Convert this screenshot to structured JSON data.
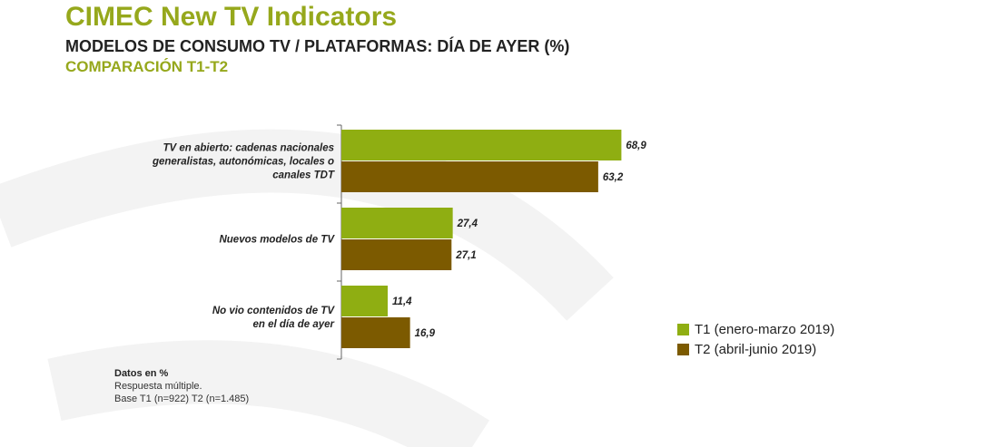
{
  "header": {
    "title": "CIMEC New TV Indicators",
    "subtitle": "MODELOS DE CONSUMO TV / PLATAFORMAS: DÍA DE AYER (%)",
    "subtitle2": "COMPARACIÓN T1-T2"
  },
  "colors": {
    "accent": "#96a81c",
    "t1": "#8fae12",
    "t2": "#7c5a00",
    "decor": "#f2f2f2"
  },
  "chart_data": {
    "type": "bar",
    "orientation": "horizontal",
    "categories": [
      [
        "TV en abierto: cadenas nacionales",
        "generalistas, autonómicas, locales o",
        "canales TDT"
      ],
      [
        "Nuevos modelos de TV"
      ],
      [
        "No vio contenidos de TV",
        "en el día de ayer"
      ]
    ],
    "series": [
      {
        "name": "T1 (enero-marzo 2019)",
        "values": [
          68.9,
          27.4,
          11.4
        ],
        "labels": [
          "68,9",
          "27,4",
          "11,4"
        ]
      },
      {
        "name": "T2 (abril-junio 2019)",
        "values": [
          63.2,
          27.1,
          16.9
        ],
        "labels": [
          "63,2",
          "27,1",
          "16,9"
        ]
      }
    ],
    "xlim": [
      0,
      100
    ],
    "grid": false,
    "legend_position": "bottom-right"
  },
  "notes": {
    "heading": "Datos en %",
    "line1": "Respuesta múltiple.",
    "line2": "Base T1 (n=922) T2 (n=1.485)"
  }
}
